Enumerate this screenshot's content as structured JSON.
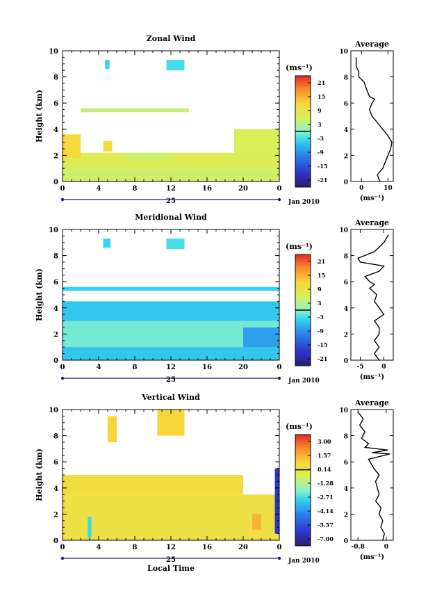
{
  "chart_data": [
    {
      "type": "heatmap",
      "title": "Zonal Wind",
      "ylabel": "Height (km)",
      "xlabel": "",
      "xlim": [
        0,
        24
      ],
      "ylim": [
        0,
        10
      ],
      "xticks": [
        "0",
        "4",
        "8",
        "12",
        "16",
        "20",
        "0"
      ],
      "yticks": [
        "0",
        "2",
        "4",
        "6",
        "8",
        "10"
      ],
      "day_label": "25",
      "date_label": "Jan 2010",
      "colorbar": {
        "unit": "(ms⁻¹)",
        "ticks": [
          "21",
          "15",
          "9",
          "3",
          "-3",
          "-9",
          "-15",
          "-21"
        ],
        "range": [
          -24,
          24
        ],
        "zero_line": 0
      },
      "fields": [
        {
          "x0": 0,
          "x1": 24,
          "y0": 0,
          "y1": 1.0,
          "value": 5
        },
        {
          "x0": 0,
          "x1": 24,
          "y0": 1.0,
          "y1": 2.2,
          "value": 7
        },
        {
          "x0": 0,
          "x1": 2,
          "y0": 1.8,
          "y1": 3.6,
          "value": 12
        },
        {
          "x0": 4.5,
          "x1": 5.5,
          "y0": 2.3,
          "y1": 3.1,
          "value": 11
        },
        {
          "x0": 7,
          "x1": 12,
          "y0": 1.6,
          "y1": 2.2,
          "value": 5
        },
        {
          "x0": 19,
          "x1": 24,
          "y0": 1.8,
          "y1": 4.0,
          "value": 6
        },
        {
          "x0": 2,
          "x1": 14,
          "y0": 5.3,
          "y1": 5.6,
          "value": 4
        },
        {
          "x0": 4.7,
          "x1": 5.2,
          "y0": 8.6,
          "y1": 9.3,
          "value": -4
        },
        {
          "x0": 11.5,
          "x1": 13.5,
          "y0": 8.5,
          "y1": 9.3,
          "value": -3
        }
      ],
      "average": {
        "title": "Average",
        "xlabel": "(ms⁻¹)",
        "xlim": [
          -4,
          12
        ],
        "xticks": [
          0,
          10
        ],
        "x": [
          7,
          6,
          8,
          9,
          10,
          11,
          11.5,
          10,
          8,
          6,
          4,
          3,
          4,
          5,
          3,
          2,
          1.5,
          1,
          0,
          -1,
          -1,
          -2,
          -2,
          -2
        ],
        "y": [
          0,
          0.5,
          1.0,
          1.5,
          2.0,
          2.5,
          3.0,
          3.5,
          4.0,
          4.5,
          5.0,
          5.5,
          6.0,
          6.3,
          6.5,
          7.0,
          7.3,
          7.6,
          7.8,
          8.0,
          8.4,
          8.8,
          9.2,
          9.5
        ]
      }
    },
    {
      "type": "heatmap",
      "title": "Meridional Wind",
      "ylabel": "Height (km)",
      "xlabel": "",
      "xlim": [
        0,
        24
      ],
      "ylim": [
        0,
        10
      ],
      "xticks": [
        "0",
        "4",
        "8",
        "12",
        "16",
        "20",
        "0"
      ],
      "yticks": [
        "0",
        "2",
        "4",
        "6",
        "8",
        "10"
      ],
      "day_label": "25",
      "date_label": "Jan 2010",
      "colorbar": {
        "unit": "(ms⁻¹)",
        "ticks": [
          "21",
          "15",
          "9",
          "3",
          "-3",
          "-9",
          "-15",
          "-21"
        ],
        "range": [
          -24,
          24
        ],
        "zero_line": 0
      },
      "fields": [
        {
          "x0": 0,
          "x1": 24,
          "y0": 0,
          "y1": 4.5,
          "value": -5
        },
        {
          "x0": 0,
          "x1": 24,
          "y0": 1.0,
          "y1": 3.0,
          "value": -1
        },
        {
          "x0": 20,
          "x1": 24,
          "y0": 1.0,
          "y1": 2.5,
          "value": -8
        },
        {
          "x0": 0,
          "x1": 24,
          "y0": 5.3,
          "y1": 5.6,
          "value": -4
        },
        {
          "x0": 4.5,
          "x1": 5.3,
          "y0": 8.6,
          "y1": 9.3,
          "value": -4
        },
        {
          "x0": 11.5,
          "x1": 13.5,
          "y0": 8.5,
          "y1": 9.3,
          "value": -3
        }
      ],
      "average": {
        "title": "Average",
        "xlabel": "(ms⁻¹)",
        "xlim": [
          -7,
          2
        ],
        "xticks": [
          -5,
          0
        ],
        "x": [
          -1,
          -2,
          -1,
          -2,
          -1,
          -1,
          -2,
          0,
          -1,
          -2,
          -1.5,
          -3,
          -2,
          -3,
          -3.5,
          -4,
          -1,
          0,
          -5,
          -5.5,
          -2,
          0,
          1
        ],
        "y": [
          0,
          0.5,
          1.0,
          1.5,
          2.0,
          2.5,
          3.0,
          3.5,
          4.0,
          4.5,
          5.0,
          5.5,
          5.8,
          6.0,
          6.2,
          6.4,
          6.8,
          7.2,
          7.5,
          7.8,
          8.3,
          9.0,
          9.6
        ]
      }
    },
    {
      "type": "heatmap",
      "title": "Vertical Wind",
      "ylabel": "Height (km)",
      "xlabel": "Local Time",
      "xlim": [
        0,
        24
      ],
      "ylim": [
        0,
        10
      ],
      "xticks": [
        "0",
        "4",
        "8",
        "12",
        "16",
        "20",
        "0"
      ],
      "yticks": [
        "0",
        "2",
        "4",
        "6",
        "8",
        "10"
      ],
      "day_label": "25",
      "date_label": "Jan 2010",
      "colorbar": {
        "unit": "(ms⁻¹)",
        "ticks": [
          "3.00",
          "1.57",
          "0.14",
          "-1.28",
          "-2.71",
          "-4.14",
          "-5.57",
          "-7.00"
        ],
        "range": [
          -8.0,
          3.7
        ],
        "zero_line": 0
      },
      "fields": [
        {
          "x0": 0,
          "x1": 24,
          "y0": 0,
          "y1": 3.5,
          "value": 0.3
        },
        {
          "x0": 0,
          "x1": 20,
          "y0": 3.5,
          "y1": 5.0,
          "value": 0.5
        },
        {
          "x0": 2.8,
          "x1": 3.2,
          "y0": 0.2,
          "y1": 1.8,
          "value": -3
        },
        {
          "x0": 23.5,
          "x1": 24,
          "y0": 0.5,
          "y1": 5.5,
          "value": -6.5
        },
        {
          "x0": 21,
          "x1": 22,
          "y0": 0.8,
          "y1": 2.0,
          "value": 1.5
        },
        {
          "x0": 5,
          "x1": 6,
          "y0": 7.5,
          "y1": 9.5,
          "value": 0.8
        },
        {
          "x0": 10.5,
          "x1": 13.5,
          "y0": 8.0,
          "y1": 10,
          "value": 0.8
        }
      ],
      "average": {
        "title": "Average",
        "xlabel": "(ms⁻¹)",
        "xlim": [
          -1.0,
          0.2
        ],
        "xticks": [
          -0.8,
          0.0
        ],
        "x": [
          -0.1,
          -0.05,
          -0.15,
          -0.1,
          -0.2,
          -0.15,
          -0.3,
          -0.2,
          -0.25,
          -0.3,
          -0.2,
          -0.35,
          -0.5,
          0.1,
          -0.4,
          0.05,
          -0.6,
          -0.5,
          -0.7,
          -0.6,
          -0.75,
          -0.65,
          -0.8
        ],
        "y": [
          0,
          0.5,
          1.0,
          1.5,
          2.0,
          2.5,
          3.0,
          3.5,
          4.0,
          4.5,
          5.0,
          5.5,
          6.2,
          6.6,
          6.7,
          6.9,
          7.1,
          7.4,
          7.8,
          8.3,
          8.8,
          9.3,
          9.8
        ]
      }
    }
  ]
}
